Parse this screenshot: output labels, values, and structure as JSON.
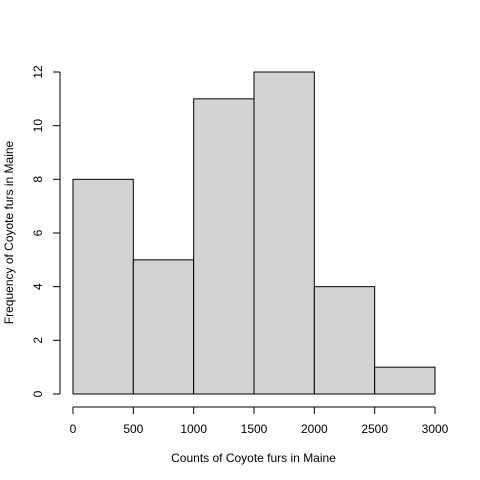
{
  "chart_data": {
    "type": "bar",
    "subtype": "histogram",
    "title": "",
    "xlabel": "Counts of Coyote furs in Maine",
    "ylabel": "Frequency of Coyote furs in Maine",
    "bins": [
      {
        "start": 0,
        "end": 500,
        "count": 8
      },
      {
        "start": 500,
        "end": 1000,
        "count": 5
      },
      {
        "start": 1000,
        "end": 1500,
        "count": 11
      },
      {
        "start": 1500,
        "end": 2000,
        "count": 12
      },
      {
        "start": 2000,
        "end": 2500,
        "count": 4
      },
      {
        "start": 2500,
        "end": 3000,
        "count": 1
      }
    ],
    "xlim": [
      0,
      3000
    ],
    "ylim": [
      0,
      12
    ],
    "x_ticks": [
      "0",
      "500",
      "1000",
      "1500",
      "2000",
      "2500",
      "3000"
    ],
    "y_ticks": [
      "0",
      "2",
      "4",
      "6",
      "8",
      "10",
      "12"
    ],
    "bar_color": "#d3d3d3",
    "edge_color": "#000000",
    "grid": false,
    "legend": "none"
  }
}
